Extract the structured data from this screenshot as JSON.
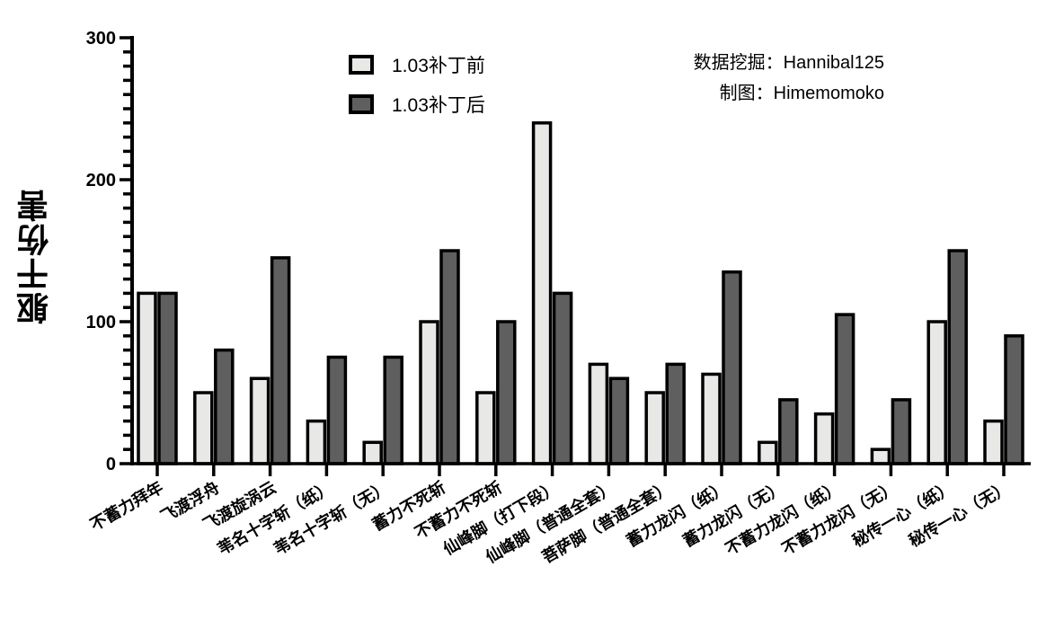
{
  "chart_data": {
    "type": "bar",
    "title": "",
    "xlabel": "",
    "ylabel": "躯干伤害",
    "ylim": [
      0,
      300
    ],
    "yticks": [
      0,
      100,
      200,
      300
    ],
    "minor_tick_step": 10,
    "grid": false,
    "legend_position": "top-center",
    "categories": [
      "不蓄力拜年",
      "飞渡浮舟",
      "飞渡旋涡云",
      "苇名十字斩（纸）",
      "苇名十字斩（无）",
      "蓄力不死斩",
      "不蓄力不死斩",
      "仙峰脚（打下段）",
      "仙峰脚（普通全套）",
      "菩萨脚（普通全套）",
      "蓄力龙闪（纸）",
      "蓄力龙闪（无）",
      "不蓄力龙闪（纸）",
      "不蓄力龙闪（无）",
      "秘传一心（纸）",
      "秘传一心（无）"
    ],
    "series": [
      {
        "name": "1.03补丁前",
        "color": "#e8e8e6",
        "values": [
          120,
          50,
          60,
          30,
          15,
          100,
          50,
          240,
          70,
          50,
          63,
          15,
          35,
          10,
          100,
          30
        ]
      },
      {
        "name": "1.03补丁后",
        "color": "#5f5f5f",
        "values": [
          120,
          80,
          145,
          75,
          75,
          150,
          100,
          120,
          60,
          70,
          135,
          45,
          105,
          45,
          150,
          90
        ]
      }
    ],
    "annotations": [
      "数据挖掘：Hannibal125",
      "制图：Himemomoko"
    ]
  },
  "legend": {
    "items": [
      {
        "label": "1.03补丁前"
      },
      {
        "label": "1.03补丁后"
      }
    ]
  },
  "credits": {
    "line1": "数据挖掘：Hannibal125",
    "line2": "制图：Himemomoko"
  },
  "axis": {
    "ylabel": "躯干伤害"
  }
}
